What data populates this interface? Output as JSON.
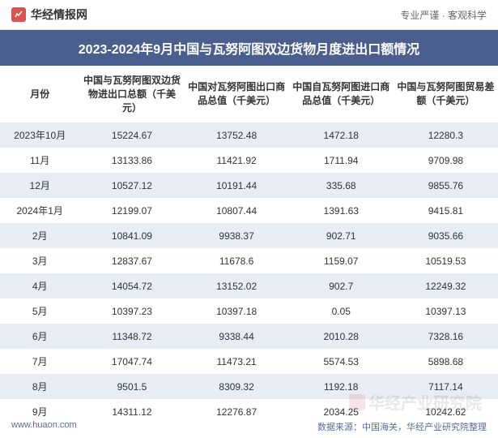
{
  "header": {
    "logo_text": "华经情报网",
    "tagline": "专业严谨 · 客观科学"
  },
  "title": "2023-2024年9月中国与瓦努阿图双边货物月度进出口额情况",
  "table": {
    "columns": [
      "月份",
      "中国与瓦努阿图双边货物进出口总额（千美元）",
      "中国对瓦努阿图出口商品总值（千美元）",
      "中国自瓦努阿图进口商品总值（千美元）",
      "中国与瓦努阿图贸易差额（千美元）"
    ],
    "rows": [
      [
        "2023年10月",
        "15224.67",
        "13752.48",
        "1472.18",
        "12280.3"
      ],
      [
        "11月",
        "13133.86",
        "11421.92",
        "1711.94",
        "9709.98"
      ],
      [
        "12月",
        "10527.12",
        "10191.44",
        "335.68",
        "9855.76"
      ],
      [
        "2024年1月",
        "12199.07",
        "10807.44",
        "1391.63",
        "9415.81"
      ],
      [
        "2月",
        "10841.09",
        "9938.37",
        "902.71",
        "9035.66"
      ],
      [
        "3月",
        "12837.67",
        "11678.6",
        "1159.07",
        "10519.53"
      ],
      [
        "4月",
        "14054.72",
        "13152.02",
        "902.7",
        "12249.32"
      ],
      [
        "5月",
        "10397.23",
        "10397.18",
        "0.05",
        "10397.13"
      ],
      [
        "6月",
        "11348.72",
        "9338.44",
        "2010.28",
        "7328.16"
      ],
      [
        "7月",
        "17047.74",
        "11473.21",
        "5574.53",
        "5898.68"
      ],
      [
        "8月",
        "9501.5",
        "8309.32",
        "1192.18",
        "7117.14"
      ],
      [
        "9月",
        "14311.12",
        "12276.87",
        "2034.25",
        "10242.62"
      ]
    ]
  },
  "footer": {
    "url": "www.huaon.com",
    "source": "数据来源：中国海关，华经产业研究院整理"
  },
  "watermark": "华经产业研究院",
  "styling": {
    "title_bg": "#4a5f8e",
    "title_color": "#ffffff",
    "row_odd_bg": "#e8ecf4",
    "row_even_bg": "#ffffff",
    "logo_color": "#d9534f",
    "footer_color": "#5a6b9a",
    "header_fontsize": 12,
    "cell_fontsize": 12,
    "title_fontsize": 16
  }
}
